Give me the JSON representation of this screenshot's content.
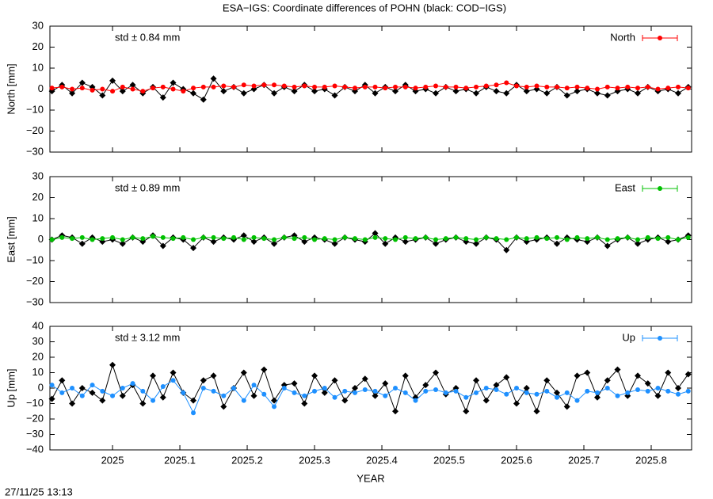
{
  "title": "ESA−IGS: Coordinate differences of POHN (black: COD−IGS)",
  "timestamp": "27/11/25 13:13",
  "chart_data": [
    {
      "type": "line",
      "ylabel": "North [mm]",
      "annotation": "std ± 0.84 mm",
      "legend": "top-right",
      "xlim": [
        2024.907,
        2025.86
      ],
      "xticks": [
        2025,
        2025.1,
        2025.2,
        2025.3,
        2025.4,
        2025.5,
        2025.6,
        2025.7,
        2025.8
      ],
      "ylim": [
        -30,
        30
      ],
      "yticks": [
        {
          "value": -30,
          "label": "−30"
        },
        {
          "value": -20,
          "label": "−20"
        },
        {
          "value": -10,
          "label": "−10"
        },
        0,
        10,
        20,
        30
      ],
      "x": [
        2024.91,
        2024.925,
        2024.94,
        2024.955,
        2024.97,
        2024.985,
        2025,
        2025.015,
        2025.03,
        2025.045,
        2025.06,
        2025.075,
        2025.09,
        2025.105,
        2025.12,
        2025.135,
        2025.15,
        2025.165,
        2025.18,
        2025.195,
        2025.21,
        2025.225,
        2025.24,
        2025.255,
        2025.27,
        2025.285,
        2025.3,
        2025.315,
        2025.33,
        2025.345,
        2025.36,
        2025.375,
        2025.39,
        2025.405,
        2025.42,
        2025.435,
        2025.45,
        2025.465,
        2025.48,
        2025.495,
        2025.51,
        2025.525,
        2025.54,
        2025.555,
        2025.57,
        2025.585,
        2025.6,
        2025.615,
        2025.63,
        2025.645,
        2025.66,
        2025.675,
        2025.69,
        2025.705,
        2025.72,
        2025.735,
        2025.75,
        2025.765,
        2025.78,
        2025.795,
        2025.81,
        2025.825,
        2025.84,
        2025.855
      ],
      "series": [
        {
          "color": "#000000",
          "values": [
            -1,
            2,
            -2,
            3,
            1,
            -3,
            4,
            -1,
            2,
            -2,
            1,
            -4,
            3,
            0,
            -2,
            -5,
            5,
            -1,
            1,
            -2,
            0,
            2,
            -2,
            1,
            -1,
            2,
            -1,
            0,
            -3,
            1,
            -1,
            2,
            -2,
            1,
            -1,
            2,
            -1,
            0,
            -2,
            1,
            -1,
            0,
            -2,
            1,
            -1,
            -2,
            2,
            -1,
            0,
            -2,
            1,
            -3,
            -1,
            0,
            -2,
            -3,
            -1,
            0,
            -2,
            1,
            -1,
            0,
            -2,
            1
          ]
        },
        {
          "name": "North",
          "color": "#ff0000",
          "values": [
            0.5,
            1,
            0,
            0.5,
            -0.5,
            0,
            -1,
            1,
            0,
            -1,
            0.5,
            1,
            0,
            -1,
            0.5,
            1,
            1,
            1.5,
            1,
            2,
            1.5,
            2,
            2,
            1.5,
            1,
            1.5,
            1,
            1,
            1.5,
            1,
            0.5,
            1,
            1,
            0.5,
            1,
            1,
            0.5,
            1,
            1.5,
            1,
            1,
            0.5,
            1,
            1.5,
            2,
            3,
            1.5,
            1,
            1.5,
            1,
            1,
            0.5,
            1,
            0.5,
            0,
            1,
            0.5,
            1,
            0.5,
            1,
            0,
            0.5,
            1,
            0.5
          ]
        }
      ]
    },
    {
      "type": "line",
      "ylabel": "East [mm]",
      "annotation": "std ± 0.89 mm",
      "legend": "top-right",
      "xlim": [
        2024.907,
        2025.86
      ],
      "xticks": [
        2025,
        2025.1,
        2025.2,
        2025.3,
        2025.4,
        2025.5,
        2025.6,
        2025.7,
        2025.8
      ],
      "ylim": [
        -30,
        30
      ],
      "yticks": [
        {
          "value": -30,
          "label": "−30"
        },
        {
          "value": -20,
          "label": "−20"
        },
        {
          "value": -10,
          "label": "−10"
        },
        0,
        10,
        20,
        30
      ],
      "x": [
        2024.91,
        2024.925,
        2024.94,
        2024.955,
        2024.97,
        2024.985,
        2025,
        2025.015,
        2025.03,
        2025.045,
        2025.06,
        2025.075,
        2025.09,
        2025.105,
        2025.12,
        2025.135,
        2025.15,
        2025.165,
        2025.18,
        2025.195,
        2025.21,
        2025.225,
        2025.24,
        2025.255,
        2025.27,
        2025.285,
        2025.3,
        2025.315,
        2025.33,
        2025.345,
        2025.36,
        2025.375,
        2025.39,
        2025.405,
        2025.42,
        2025.435,
        2025.45,
        2025.465,
        2025.48,
        2025.495,
        2025.51,
        2025.525,
        2025.54,
        2025.555,
        2025.57,
        2025.585,
        2025.6,
        2025.615,
        2025.63,
        2025.645,
        2025.66,
        2025.675,
        2025.69,
        2025.705,
        2025.72,
        2025.735,
        2025.75,
        2025.765,
        2025.78,
        2025.795,
        2025.81,
        2025.825,
        2025.84,
        2025.855
      ],
      "series": [
        {
          "color": "#000000",
          "values": [
            0,
            2,
            1,
            -2,
            1,
            -1,
            0,
            -2,
            1,
            -1,
            2,
            -3,
            1,
            0,
            -4,
            1,
            -1,
            1,
            0,
            2,
            -1,
            1,
            -2,
            1,
            2,
            -1,
            1,
            0,
            -2,
            1,
            0,
            -1,
            3,
            -2,
            1,
            -1,
            0,
            1,
            -2,
            0,
            1,
            -1,
            -2,
            1,
            0,
            -5,
            1,
            -1,
            0,
            1,
            -2,
            1,
            0,
            -1,
            1,
            -3,
            0,
            1,
            -2,
            0,
            1,
            -1,
            0,
            2
          ]
        },
        {
          "name": "East",
          "color": "#00c000",
          "values": [
            0,
            1,
            0.5,
            1,
            0,
            0.5,
            1,
            0,
            1,
            0.5,
            1.5,
            1,
            0.5,
            1,
            0,
            1,
            1,
            0.5,
            1,
            0,
            1,
            0.5,
            0,
            1,
            0.5,
            1,
            0,
            0.5,
            0,
            1,
            0.5,
            0,
            1,
            0.5,
            0,
            1,
            0.5,
            1,
            0,
            0.5,
            1,
            0.5,
            0,
            1,
            0.5,
            0,
            1,
            0.5,
            1,
            0.5,
            1,
            0,
            1,
            0.5,
            1,
            0,
            0.5,
            1,
            0,
            1,
            0.5,
            1,
            0,
            1
          ]
        }
      ]
    },
    {
      "type": "line",
      "ylabel": "Up [mm]",
      "annotation": "std ± 3.12 mm",
      "legend": "top-right",
      "xlabel": "YEAR",
      "xlim": [
        2024.907,
        2025.86
      ],
      "xticks": [
        2025,
        2025.1,
        2025.2,
        2025.3,
        2025.4,
        2025.5,
        2025.6,
        2025.7,
        2025.8
      ],
      "ylim": [
        -40,
        40
      ],
      "yticks": [
        {
          "value": -40,
          "label": "−40"
        },
        {
          "value": -30,
          "label": "−30"
        },
        {
          "value": -20,
          "label": "−20"
        },
        {
          "value": -10,
          "label": "−10"
        },
        0,
        10,
        20,
        30,
        40
      ],
      "x": [
        2024.91,
        2024.925,
        2024.94,
        2024.955,
        2024.97,
        2024.985,
        2025,
        2025.015,
        2025.03,
        2025.045,
        2025.06,
        2025.075,
        2025.09,
        2025.105,
        2025.12,
        2025.135,
        2025.15,
        2025.165,
        2025.18,
        2025.195,
        2025.21,
        2025.225,
        2025.24,
        2025.255,
        2025.27,
        2025.285,
        2025.3,
        2025.315,
        2025.33,
        2025.345,
        2025.36,
        2025.375,
        2025.39,
        2025.405,
        2025.42,
        2025.435,
        2025.45,
        2025.465,
        2025.48,
        2025.495,
        2025.51,
        2025.525,
        2025.54,
        2025.555,
        2025.57,
        2025.585,
        2025.6,
        2025.615,
        2025.63,
        2025.645,
        2025.66,
        2025.675,
        2025.69,
        2025.705,
        2025.72,
        2025.735,
        2025.75,
        2025.765,
        2025.78,
        2025.795,
        2025.81,
        2025.825,
        2025.84,
        2025.855
      ],
      "series": [
        {
          "color": "#000000",
          "values": [
            -7,
            5,
            -10,
            0,
            -3,
            -8,
            15,
            -5,
            2,
            -10,
            8,
            -6,
            10,
            -3,
            -8,
            5,
            8,
            -12,
            0,
            10,
            -5,
            12,
            -8,
            2,
            3,
            -10,
            8,
            -3,
            5,
            -8,
            0,
            6,
            -5,
            3,
            -15,
            8,
            -6,
            2,
            10,
            -4,
            0,
            -15,
            5,
            -8,
            2,
            7,
            -10,
            0,
            -15,
            5,
            -3,
            -12,
            8,
            10,
            -6,
            5,
            12,
            -5,
            8,
            3,
            -5,
            10,
            0,
            9
          ]
        },
        {
          "name": "Up",
          "color": "#1e90ff",
          "values": [
            2,
            -3,
            0,
            -5,
            2,
            -2,
            -5,
            0,
            3,
            -2,
            -8,
            1,
            5,
            -3,
            -16,
            0,
            -2,
            -5,
            0,
            -8,
            2,
            -4,
            -12,
            0,
            -3,
            -5,
            -2,
            0,
            -6,
            -2,
            -3,
            -1,
            -2,
            -5,
            0,
            -3,
            -8,
            -2,
            -1,
            -3,
            -2,
            -6,
            -3,
            0,
            -1,
            -4,
            0,
            -3,
            -4,
            -2,
            -6,
            -3,
            -8,
            -2,
            -3,
            0,
            -5,
            -3,
            -1,
            -2,
            0,
            -2,
            -4,
            -2
          ]
        }
      ]
    }
  ]
}
